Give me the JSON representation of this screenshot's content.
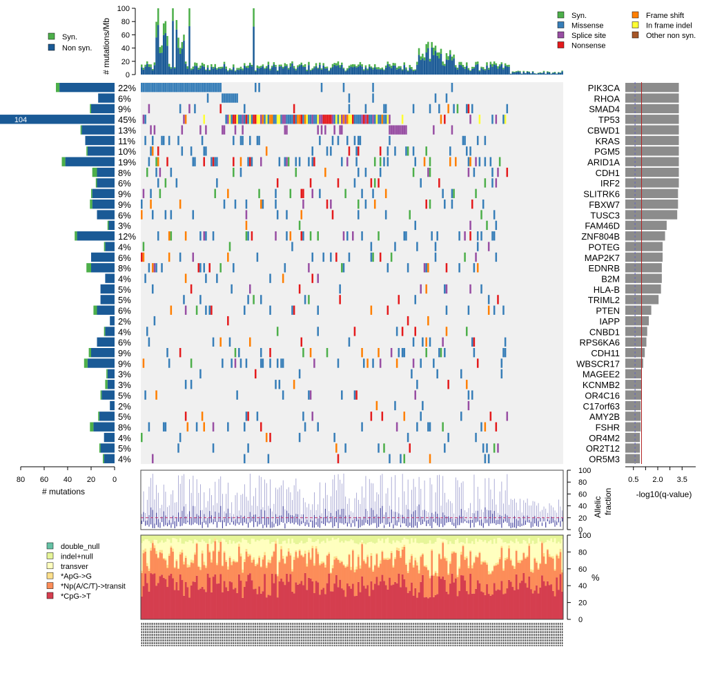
{
  "chart_data": {
    "type": "oncoplot",
    "top_panel": {
      "ylabel": "# mutations/Mb",
      "yticks": [
        "0",
        "20",
        "40",
        "60",
        "80",
        "100"
      ],
      "ylim": [
        0,
        100
      ],
      "legend": [
        {
          "label": "Syn.",
          "color": "#4daf4a"
        },
        {
          "label": "Non syn.",
          "color": "#1a5a96"
        }
      ]
    },
    "variant_legend": [
      {
        "label": "Syn.",
        "color": "#4daf4a"
      },
      {
        "label": "Missense",
        "color": "#377eb8"
      },
      {
        "label": "Splice site",
        "color": "#984ea3"
      },
      {
        "label": "Nonsense",
        "color": "#e41a1c"
      },
      {
        "label": "Frame shift",
        "color": "#ff7f00"
      },
      {
        "label": "In frame indel",
        "color": "#ffff33"
      },
      {
        "label": "Other non syn.",
        "color": "#a65628"
      }
    ],
    "genes": [
      {
        "name": "PIK3CA",
        "pct": "22%",
        "count": 50,
        "syn": 3,
        "q": 3.3
      },
      {
        "name": "RHOA",
        "pct": "6%",
        "count": 14,
        "syn": 0,
        "q": 3.3
      },
      {
        "name": "SMAD4",
        "pct": "9%",
        "count": 21,
        "syn": 1,
        "q": 3.3
      },
      {
        "name": "TP53",
        "pct": "45%",
        "count": 104,
        "syn": 1,
        "q": 3.3
      },
      {
        "name": "CBWD1",
        "pct": "13%",
        "count": 29,
        "syn": 1,
        "q": 3.3
      },
      {
        "name": "KRAS",
        "pct": "11%",
        "count": 25,
        "syn": 0,
        "q": 3.3
      },
      {
        "name": "PGM5",
        "pct": "10%",
        "count": 24,
        "syn": 1,
        "q": 3.3
      },
      {
        "name": "ARID1A",
        "pct": "19%",
        "count": 45,
        "syn": 3,
        "q": 3.3
      },
      {
        "name": "CDH1",
        "pct": "8%",
        "count": 19,
        "syn": 4,
        "q": 3.3
      },
      {
        "name": "IRF2",
        "pct": "6%",
        "count": 16,
        "syn": 1,
        "q": 3.3
      },
      {
        "name": "SLITRK6",
        "pct": "9%",
        "count": 20,
        "syn": 1,
        "q": 3.25
      },
      {
        "name": "FBXW7",
        "pct": "9%",
        "count": 21,
        "syn": 2,
        "q": 3.25
      },
      {
        "name": "TUSC3",
        "pct": "6%",
        "count": 15,
        "syn": 0,
        "q": 3.2
      },
      {
        "name": "FAM46D",
        "pct": "3%",
        "count": 6,
        "syn": 1,
        "q": 2.55
      },
      {
        "name": "ZNF804B",
        "pct": "12%",
        "count": 34,
        "syn": 2,
        "q": 2.45
      },
      {
        "name": "POTEG",
        "pct": "4%",
        "count": 9,
        "syn": 1,
        "q": 2.3
      },
      {
        "name": "MAP2K7",
        "pct": "6%",
        "count": 20,
        "syn": 0,
        "q": 2.3
      },
      {
        "name": "EDNRB",
        "pct": "8%",
        "count": 24,
        "syn": 4,
        "q": 2.25
      },
      {
        "name": "B2M",
        "pct": "4%",
        "count": 8,
        "syn": 0,
        "q": 2.25
      },
      {
        "name": "HLA-B",
        "pct": "5%",
        "count": 12,
        "syn": 0,
        "q": 2.2
      },
      {
        "name": "TRIML2",
        "pct": "5%",
        "count": 12,
        "syn": 0,
        "q": 2.05
      },
      {
        "name": "PTEN",
        "pct": "6%",
        "count": 18,
        "syn": 3,
        "q": 1.6
      },
      {
        "name": "IAPP",
        "pct": "2%",
        "count": 4,
        "syn": 0,
        "q": 1.45
      },
      {
        "name": "CNBD1",
        "pct": "4%",
        "count": 9,
        "syn": 1,
        "q": 1.35
      },
      {
        "name": "RPS6KA6",
        "pct": "6%",
        "count": 15,
        "syn": 0,
        "q": 1.3
      },
      {
        "name": "CDH11",
        "pct": "9%",
        "count": 22,
        "syn": 2,
        "q": 1.2
      },
      {
        "name": "WBSCR17",
        "pct": "9%",
        "count": 26,
        "syn": 3,
        "q": 1.1
      },
      {
        "name": "MAGEE2",
        "pct": "3%",
        "count": 7,
        "syn": 1,
        "q": 1.0
      },
      {
        "name": "KCNMB2",
        "pct": "3%",
        "count": 8,
        "syn": 2,
        "q": 1.0
      },
      {
        "name": "OR4C16",
        "pct": "5%",
        "count": 12,
        "syn": 1,
        "q": 1.0
      },
      {
        "name": "C17orf63",
        "pct": "2%",
        "count": 4,
        "syn": 0,
        "q": 0.95
      },
      {
        "name": "AMY2B",
        "pct": "5%",
        "count": 14,
        "syn": 1,
        "q": 0.95
      },
      {
        "name": "FSHR",
        "pct": "8%",
        "count": 21,
        "syn": 3,
        "q": 0.95
      },
      {
        "name": "OR4M2",
        "pct": "4%",
        "count": 9,
        "syn": 0,
        "q": 0.9
      },
      {
        "name": "OR2T12",
        "pct": "5%",
        "count": 13,
        "syn": 1,
        "q": 0.9
      },
      {
        "name": "OR5M3",
        "pct": "4%",
        "count": 10,
        "syn": 1,
        "q": 0.9
      }
    ],
    "left_axis": {
      "label": "# mutations",
      "ticks": [
        "80",
        "60",
        "40",
        "20",
        "0"
      ],
      "overflow_label": "104"
    },
    "right_axis": {
      "label": "-log10(q-value)",
      "ticks": [
        "0.5",
        "2.0",
        "3.5"
      ],
      "extra_ticks": [
        1.25,
        2.75
      ],
      "threshold_solid": 1.0,
      "threshold_dashed": 0.6
    },
    "allelic_panel": {
      "ylabel_1": "Allelic",
      "ylabel_2": "fraction",
      "yticks": [
        "0",
        "20",
        "40",
        "60",
        "80",
        "100"
      ],
      "median_line": 20
    },
    "spectrum_panel": {
      "ylabel": "%",
      "yticks": [
        "0",
        "20",
        "40",
        "60",
        "80",
        "100"
      ],
      "legend": [
        {
          "label": "double_null",
          "color": "#66c2a5"
        },
        {
          "label": "indel+null",
          "color": "#e6f598"
        },
        {
          "label": "transver",
          "color": "#ffffbf"
        },
        {
          "label": "*ApG->G",
          "color": "#fee08b"
        },
        {
          "label": "*Np(A/C/T)->transit",
          "color": "#fc8d59"
        },
        {
          "label": "*CpG->T",
          "color": "#d53e4f"
        }
      ]
    },
    "n_samples": 230,
    "colors": {
      "missense": "#377eb8",
      "nonsyn_bar": "#1a5a96",
      "syn": "#4daf4a",
      "nonsense": "#e41a1c",
      "frameshift": "#ff7f00",
      "splice": "#984ea3",
      "inframe": "#ffff33",
      "other": "#a65628",
      "grid_bg": "#f0f0f0",
      "qbar": "#8c8c8c",
      "thresh": "#b22222",
      "af_line": "#3a3a9a"
    }
  }
}
